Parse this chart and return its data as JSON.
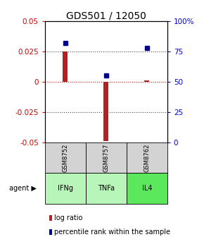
{
  "title": "GDS501 / 12050",
  "samples": [
    "GSM8752",
    "GSM8757",
    "GSM8762"
  ],
  "agents": [
    "IFNg",
    "TNFa",
    "IL4"
  ],
  "log_ratios": [
    0.025,
    -0.049,
    0.001
  ],
  "percentile_ranks": [
    82,
    55,
    78
  ],
  "ylim_left": [
    -0.05,
    0.05
  ],
  "ylim_right": [
    0,
    100
  ],
  "yticks_left": [
    -0.05,
    -0.025,
    0,
    0.025,
    0.05
  ],
  "yticks_right": [
    0,
    25,
    50,
    75,
    100
  ],
  "ytick_labels_left": [
    "-0.05",
    "-0.025",
    "0",
    "0.025",
    "0.05"
  ],
  "ytick_labels_right": [
    "0",
    "25",
    "50",
    "75",
    "100%"
  ],
  "bar_color": "#b22222",
  "dot_color": "#00008b",
  "sample_bg_color": "#d3d3d3",
  "agent_colors": [
    "#b8f5b8",
    "#b8f5b8",
    "#5ce85c"
  ],
  "zero_line_color": "#cc0000",
  "grid_color": "#444444",
  "title_fontsize": 10,
  "tick_fontsize": 7.5,
  "label_fontsize": 7.5,
  "legend_fontsize": 7
}
